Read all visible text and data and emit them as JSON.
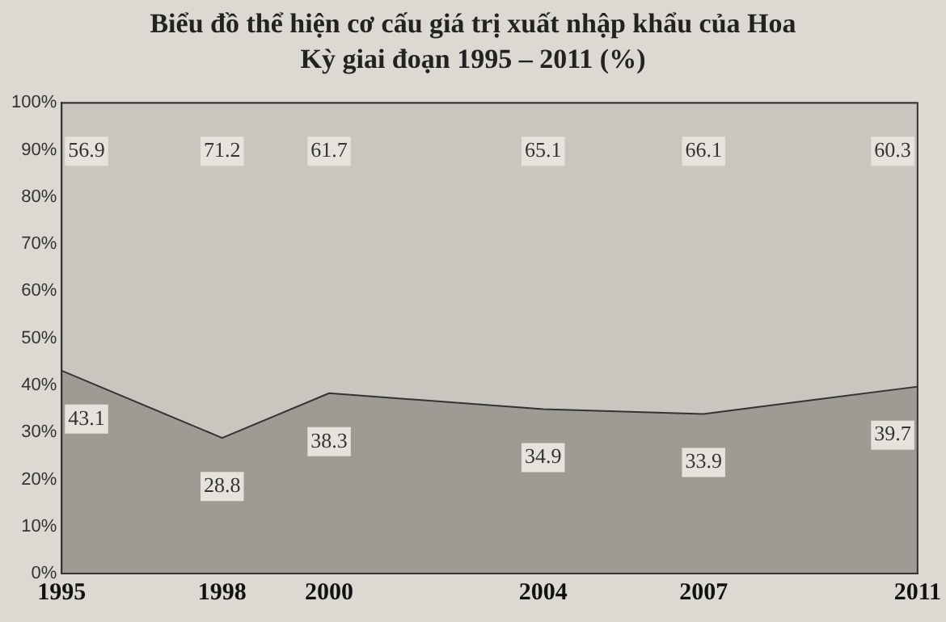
{
  "chart_data": {
    "type": "area",
    "title": "Biểu đồ thể hiện cơ cấu giá trị xuất nhập khẩu của Hoa Kỳ giai đoạn 1995 – 2011 (%)",
    "x": [
      1995,
      1998,
      2000,
      2004,
      2007,
      2011
    ],
    "stacked": true,
    "series": [
      {
        "color": "#9e9b95",
        "values": [
          43.1,
          28.8,
          38.3,
          34.9,
          33.9,
          39.7
        ]
      },
      {
        "color": "#c9c6bf",
        "values": [
          56.9,
          71.2,
          61.7,
          65.1,
          66.1,
          60.3
        ]
      }
    ],
    "xlim": [
      1995,
      2011
    ],
    "xticks": [
      1995,
      1998,
      2000,
      2004,
      2007,
      2011
    ],
    "ylim": [
      0,
      100
    ],
    "yticks": [
      {
        "value": 0,
        "label": "0%"
      },
      {
        "value": 10,
        "label": "10%"
      },
      {
        "value": 20,
        "label": "20%"
      },
      {
        "value": 30,
        "label": "30%"
      },
      {
        "value": 40,
        "label": "40%"
      },
      {
        "value": 50,
        "label": "50%"
      },
      {
        "value": 60,
        "label": "60%"
      },
      {
        "value": 70,
        "label": "70%"
      },
      {
        "value": 80,
        "label": "80%"
      },
      {
        "value": 90,
        "label": "90%"
      },
      {
        "value": 100,
        "label": "100%"
      }
    ],
    "grid": false,
    "legend": false,
    "data_labels": true
  }
}
